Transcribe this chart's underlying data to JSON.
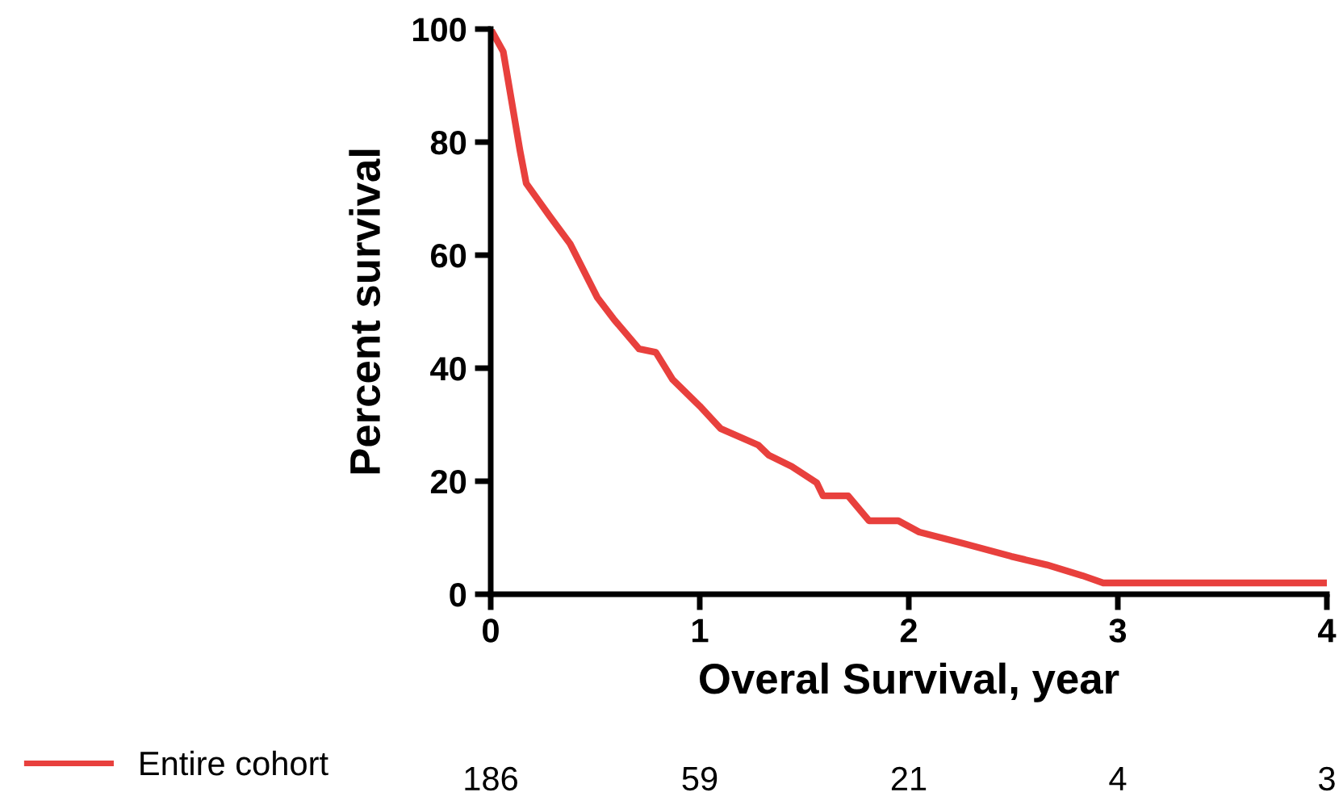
{
  "chart_data": {
    "type": "line",
    "xlabel": "Overal Survival, year",
    "ylabel": "Percent survival",
    "xlim": [
      0,
      4
    ],
    "xticks": [
      0,
      1,
      2,
      3,
      4
    ],
    "ylim": [
      0,
      100
    ],
    "yticks": [
      0,
      20,
      40,
      60,
      80,
      100
    ],
    "grid": false,
    "legend": "bottom left",
    "series": [
      {
        "name": "Entire cohort",
        "color": "#e8403d",
        "x": [
          0,
          0.06,
          0.14,
          0.17,
          0.28,
          0.38,
          0.51,
          0.59,
          0.71,
          0.79,
          0.87,
          1.0,
          1.1,
          1.28,
          1.33,
          1.44,
          1.56,
          1.59,
          1.71,
          1.81,
          1.95,
          2.05,
          2.26,
          2.49,
          2.66,
          2.83,
          2.93,
          4
        ],
        "values": [
          100,
          96,
          78.5,
          72.7,
          67,
          62,
          52.5,
          48.6,
          43.4,
          42.8,
          38,
          33.3,
          29.3,
          26.4,
          24.6,
          22.6,
          19.7,
          17.4,
          17.4,
          13,
          13,
          11,
          9,
          6.7,
          5.2,
          3.3,
          2,
          2
        ]
      }
    ],
    "annotations": [
      "186",
      "59",
      "21",
      "4",
      "3"
    ]
  }
}
